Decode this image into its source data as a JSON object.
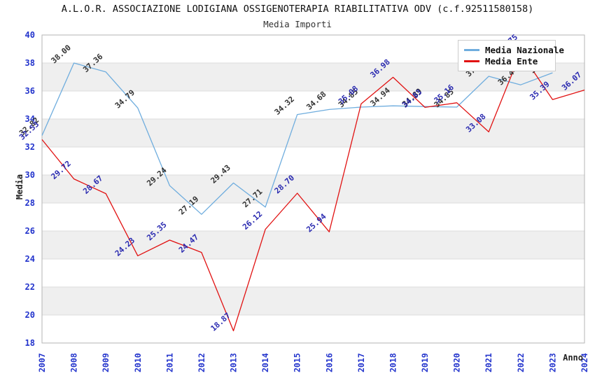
{
  "chart_data": {
    "type": "line",
    "title": "A.L.O.R. ASSOCIAZIONE LODIGIANA OSSIGENOTERAPIA RIABILITATIVA ODV (c.f.92511580158)",
    "subtitle": "Media Importi",
    "xlabel": "Anno",
    "ylabel": "Media",
    "ylim": [
      18,
      40
    ],
    "y_tick_step": 2,
    "y_ticks": [
      "18",
      "20",
      "22",
      "24",
      "26",
      "28",
      "30",
      "32",
      "34",
      "36",
      "38",
      "40"
    ],
    "grid": "horizontal-alternating-bands",
    "legend_position": "top-right",
    "categories": [
      "2007",
      "2008",
      "2009",
      "2010",
      "2011",
      "2012",
      "2013",
      "2014",
      "2015",
      "2016",
      "2017",
      "2018",
      "2019",
      "2020",
      "2021",
      "2022",
      "2023",
      "2024"
    ],
    "series": [
      {
        "name": "Media Nazionale",
        "color": "#6fadde",
        "label_color": "#333333",
        "values": [
          32.82,
          38.0,
          37.36,
          34.79,
          29.24,
          27.19,
          29.43,
          27.71,
          34.32,
          34.68,
          34.85,
          34.94,
          34.89,
          34.85,
          37.05,
          36.44,
          37.3,
          null
        ],
        "labels": [
          "32.82",
          "38.00",
          "37.36",
          "34.79",
          "29.24",
          "27.19",
          "29.43",
          "27.71",
          "34.32",
          "34.68",
          "34.85",
          "34.94",
          "34.89",
          "34.85",
          "37.05",
          "36.44",
          "37.30",
          ""
        ]
      },
      {
        "name": "Media Ente",
        "color": "#e11212",
        "label_color": "#2a2ab0",
        "values": [
          32.53,
          29.72,
          28.67,
          24.23,
          25.35,
          24.47,
          18.87,
          26.12,
          28.7,
          25.94,
          35.08,
          36.98,
          34.83,
          35.16,
          33.08,
          38.75,
          35.39,
          36.07
        ],
        "labels": [
          "32.53",
          "29.72",
          "28.67",
          "24.23",
          "25.35",
          "24.47",
          "18.87",
          "26.12",
          "28.70",
          "25.94",
          "35.08",
          "36.98",
          "34.83",
          "35.16",
          "33.08",
          "38.75",
          "35.39",
          "36.07"
        ]
      }
    ]
  },
  "styles": {
    "tick_color": "#2233cc",
    "band_color": "#efefef",
    "grid_line_color": "#dcdcdc",
    "border_color": "#b5b5b5"
  }
}
